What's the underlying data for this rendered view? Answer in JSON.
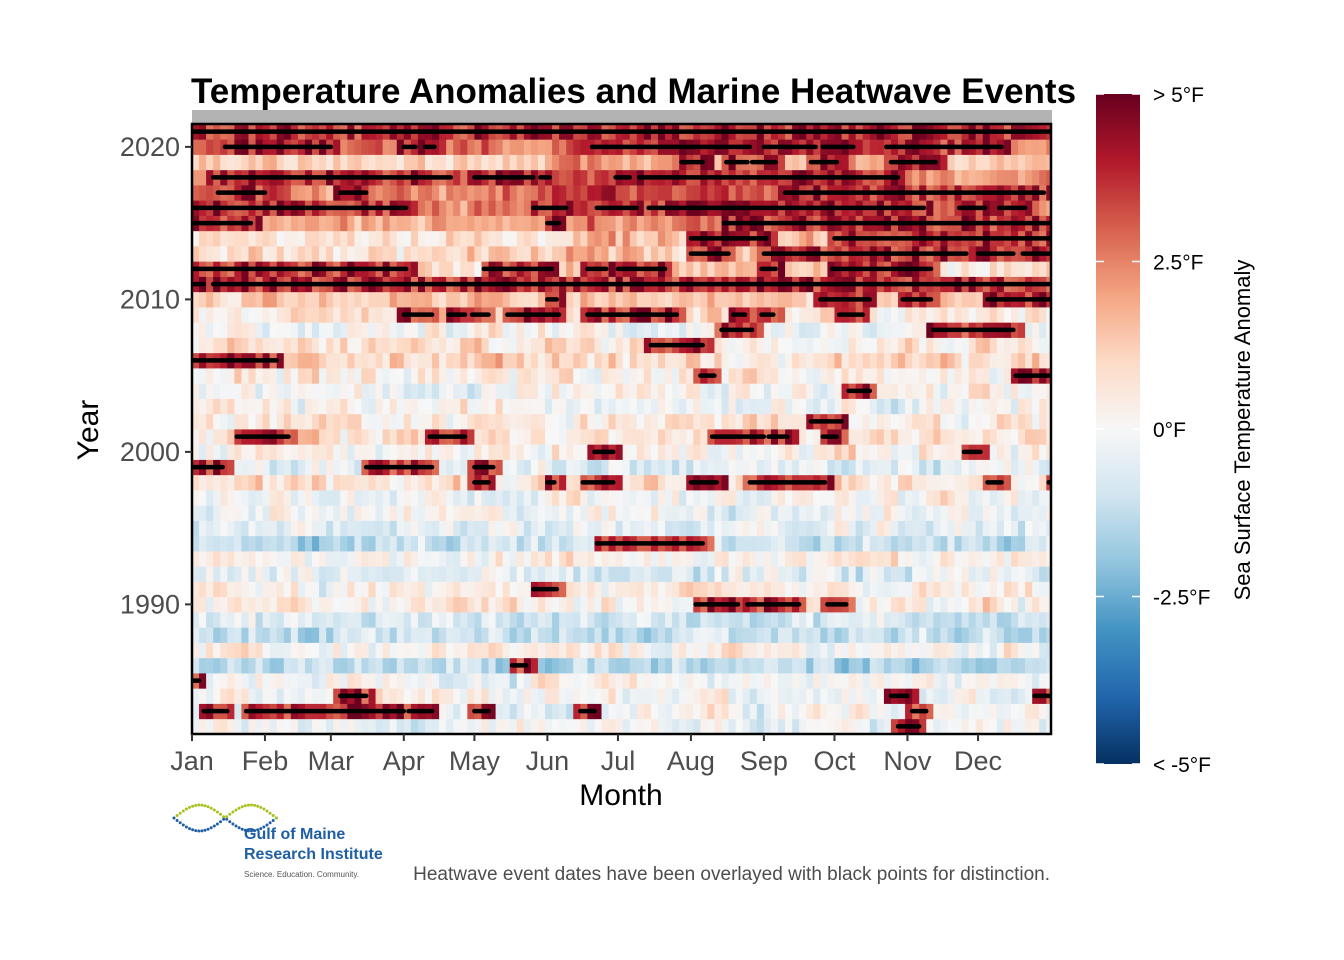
{
  "chart_data": {
    "type": "heatmap",
    "title": "Temperature Anomalies and Marine Heatwave Events",
    "xlabel": "Month",
    "ylabel": "Year",
    "x_categories": [
      "Jan",
      "Feb",
      "Mar",
      "Apr",
      "May",
      "Jun",
      "Jul",
      "Aug",
      "Sep",
      "Oct",
      "Nov",
      "Dec"
    ],
    "y_ticks": [
      "1990",
      "2000",
      "2010",
      "2020"
    ],
    "year_range": [
      1982,
      2021
    ],
    "legend": {
      "title": "Sea Surface Temperature Anomaly",
      "labels": [
        "> 5°F",
        "2.5°F",
        "0°F",
        "-2.5°F",
        "< -5°F"
      ],
      "values": [
        5,
        2.5,
        0,
        -2.5,
        -5
      ],
      "position": "right"
    },
    "colors": {
      "scale": [
        "#053061",
        "#2166ac",
        "#4393c3",
        "#92c5de",
        "#d1e5f0",
        "#f7f7f7",
        "#fddbc7",
        "#f4a582",
        "#d6604d",
        "#b2182b",
        "#67001f"
      ],
      "heatwave_marker": "#000000",
      "strip": "#b3b3b3"
    },
    "heatwave_events": [
      {
        "year": 2021,
        "start": "Jan 1",
        "end": "Dec 31"
      },
      {
        "year": 2020,
        "start": "Jan 15",
        "end": "Feb 28"
      },
      {
        "year": 2020,
        "start": "Apr 1",
        "end": "Apr 5"
      },
      {
        "year": 2020,
        "start": "Apr 10",
        "end": "Apr 13"
      },
      {
        "year": 2020,
        "start": "Jun 20",
        "end": "Aug 25"
      },
      {
        "year": 2020,
        "start": "Sep 1",
        "end": "Sep 22"
      },
      {
        "year": 2020,
        "start": "Sep 26",
        "end": "Oct 8"
      },
      {
        "year": 2020,
        "start": "Oct 23",
        "end": "Dec 10"
      },
      {
        "year": 2019,
        "start": "Jul 28",
        "end": "Aug 5"
      },
      {
        "year": 2019,
        "start": "Aug 16",
        "end": "Aug 24"
      },
      {
        "year": 2019,
        "start": "Aug 27",
        "end": "Sep 5"
      },
      {
        "year": 2019,
        "start": "Sep 21",
        "end": "Oct 1"
      },
      {
        "year": 2019,
        "start": "Oct 25",
        "end": "Nov 12"
      },
      {
        "year": 2018,
        "start": "Jan 10",
        "end": "Mar 31"
      },
      {
        "year": 2018,
        "start": "Apr 1",
        "end": "Apr 20"
      },
      {
        "year": 2018,
        "start": "May 1",
        "end": "May 25"
      },
      {
        "year": 2018,
        "start": "May 29",
        "end": "Jun 1"
      },
      {
        "year": 2018,
        "start": "Jun 30",
        "end": "Jul 5"
      },
      {
        "year": 2018,
        "start": "Jul 10",
        "end": "Oct 27"
      },
      {
        "year": 2017,
        "start": "Jan 12",
        "end": "Jan 31"
      },
      {
        "year": 2017,
        "start": "Mar 5",
        "end": "Mar 15"
      },
      {
        "year": 2017,
        "start": "Sep 10",
        "end": "Dec 28"
      },
      {
        "year": 2016,
        "start": "Jan 1",
        "end": "Apr 1"
      },
      {
        "year": 2016,
        "start": "May 26",
        "end": "Jun 8"
      },
      {
        "year": 2016,
        "start": "Jun 22",
        "end": "Jul 8"
      },
      {
        "year": 2016,
        "start": "Jul 14",
        "end": "Nov 7"
      },
      {
        "year": 2016,
        "start": "Nov 23",
        "end": "Dec 3"
      },
      {
        "year": 2016,
        "start": "Dec 10",
        "end": "Dec 20"
      },
      {
        "year": 2015,
        "start": "Jan 1",
        "end": "Jan 25"
      },
      {
        "year": 2015,
        "start": "Jun 1",
        "end": "Jun 5"
      },
      {
        "year": 2015,
        "start": "Aug 15",
        "end": "Dec 31"
      },
      {
        "year": 2014,
        "start": "Aug 1",
        "end": "Sep 1"
      },
      {
        "year": 2014,
        "start": "Oct 1",
        "end": "Dec 31"
      },
      {
        "year": 2013,
        "start": "Aug 1",
        "end": "Aug 16"
      },
      {
        "year": 2013,
        "start": "Sep 1",
        "end": "Nov 25"
      },
      {
        "year": 2013,
        "start": "Dec 1",
        "end": "Dec 15"
      },
      {
        "year": 2013,
        "start": "Dec 20",
        "end": "Dec 31"
      },
      {
        "year": 2012,
        "start": "Jan 1",
        "end": "Apr 1"
      },
      {
        "year": 2012,
        "start": "May 5",
        "end": "Jun 2"
      },
      {
        "year": 2012,
        "start": "Jun 18",
        "end": "Jun 25"
      },
      {
        "year": 2012,
        "start": "Jul 1",
        "end": "Jul 20"
      },
      {
        "year": 2012,
        "start": "Aug 31",
        "end": "Sep 5"
      },
      {
        "year": 2012,
        "start": "Sep 30",
        "end": "Nov 10"
      },
      {
        "year": 2011,
        "start": "Jan 1",
        "end": "Jan 5"
      },
      {
        "year": 2011,
        "start": "Jan 10",
        "end": "Dec 31"
      },
      {
        "year": 2010,
        "start": "Jun 1",
        "end": "Jun 4"
      },
      {
        "year": 2010,
        "start": "Sep 25",
        "end": "Oct 15"
      },
      {
        "year": 2010,
        "start": "Oct 30",
        "end": "Nov 10"
      },
      {
        "year": 2010,
        "start": "Dec 5",
        "end": "Dec 31"
      },
      {
        "year": 2009,
        "start": "Apr 1",
        "end": "Apr 12"
      },
      {
        "year": 2009,
        "start": "Apr 20",
        "end": "Apr 26"
      },
      {
        "year": 2009,
        "start": "Apr 30",
        "end": "May 6"
      },
      {
        "year": 2009,
        "start": "May 15",
        "end": "Jun 5"
      },
      {
        "year": 2009,
        "start": "Jun 18",
        "end": "Jul 1"
      },
      {
        "year": 2009,
        "start": "Jul 1",
        "end": "Jul 25"
      },
      {
        "year": 2009,
        "start": "Aug 19",
        "end": "Aug 23"
      },
      {
        "year": 2009,
        "start": "Aug 31",
        "end": "Sep 4"
      },
      {
        "year": 2009,
        "start": "Oct 3",
        "end": "Oct 12"
      },
      {
        "year": 2008,
        "start": "Aug 14",
        "end": "Aug 26"
      },
      {
        "year": 2008,
        "start": "Nov 12",
        "end": "Dec 15"
      },
      {
        "year": 2007,
        "start": "Jul 15",
        "end": "Aug 5"
      },
      {
        "year": 2006,
        "start": "Jan 1",
        "end": "Feb 5"
      },
      {
        "year": 2005,
        "start": "Aug 5",
        "end": "Aug 10"
      },
      {
        "year": 2005,
        "start": "Dec 17",
        "end": "Dec 31"
      },
      {
        "year": 2004,
        "start": "Oct 7",
        "end": "Oct 15"
      },
      {
        "year": 2002,
        "start": "Sep 21",
        "end": "Oct 3"
      },
      {
        "year": 2001,
        "start": "Jan 20",
        "end": "Feb 10"
      },
      {
        "year": 2001,
        "start": "Apr 12",
        "end": "Apr 26"
      },
      {
        "year": 2001,
        "start": "Aug 10",
        "end": "Aug 31"
      },
      {
        "year": 2001,
        "start": "Sep 3",
        "end": "Sep 10"
      },
      {
        "year": 2001,
        "start": "Sep 26",
        "end": "Oct 1"
      },
      {
        "year": 2000,
        "start": "Jun 21",
        "end": "Jun 28"
      },
      {
        "year": 2000,
        "start": "Nov 25",
        "end": "Dec 1"
      },
      {
        "year": 1999,
        "start": "Jan 1",
        "end": "Jan 13"
      },
      {
        "year": 1999,
        "start": "Mar 16",
        "end": "Apr 12"
      },
      {
        "year": 1999,
        "start": "May 1",
        "end": "May 8"
      },
      {
        "year": 1998,
        "start": "May 1",
        "end": "May 6"
      },
      {
        "year": 1998,
        "start": "Jun 1",
        "end": "Jun 3"
      },
      {
        "year": 1998,
        "start": "Jun 16",
        "end": "Jun 28"
      },
      {
        "year": 1998,
        "start": "Aug 1",
        "end": "Aug 11"
      },
      {
        "year": 1998,
        "start": "Aug 26",
        "end": "Sep 26"
      },
      {
        "year": 1998,
        "start": "Dec 5",
        "end": "Dec 10"
      },
      {
        "year": 1998,
        "start": "Dec 31",
        "end": "Dec 31"
      },
      {
        "year": 1994,
        "start": "Jun 22",
        "end": "Aug 5"
      },
      {
        "year": 1991,
        "start": "May 26",
        "end": "Jun 4"
      },
      {
        "year": 1990,
        "start": "Aug 3",
        "end": "Aug 20"
      },
      {
        "year": 1990,
        "start": "Aug 25",
        "end": "Sep 15"
      },
      {
        "year": 1990,
        "start": "Sep 28",
        "end": "Oct 5"
      },
      {
        "year": 1986,
        "start": "May 17",
        "end": "May 22"
      },
      {
        "year": 1985,
        "start": "Jan 1",
        "end": "Jan 3"
      },
      {
        "year": 1984,
        "start": "Mar 5",
        "end": "Mar 15"
      },
      {
        "year": 1984,
        "start": "Oct 25",
        "end": "Oct 31"
      },
      {
        "year": 1984,
        "start": "Dec 25",
        "end": "Dec 31"
      },
      {
        "year": 1983,
        "start": "Jan 6",
        "end": "Jan 15"
      },
      {
        "year": 1983,
        "start": "Jan 24",
        "end": "Mar 31"
      },
      {
        "year": 1983,
        "start": "Apr 3",
        "end": "Apr 12"
      },
      {
        "year": 1983,
        "start": "May 1",
        "end": "May 6"
      },
      {
        "year": 1983,
        "start": "Jun 15",
        "end": "Jun 20"
      },
      {
        "year": 1983,
        "start": "Nov 3",
        "end": "Nov 8"
      },
      {
        "year": 1982,
        "start": "Oct 28",
        "end": "Nov 5"
      }
    ]
  },
  "caption": "Heatwave event dates have been overlayed with black points for distinction.",
  "logo": {
    "line1": "Gulf of Maine",
    "line2": "Research Institute",
    "tagline": "Science. Education. Community."
  }
}
